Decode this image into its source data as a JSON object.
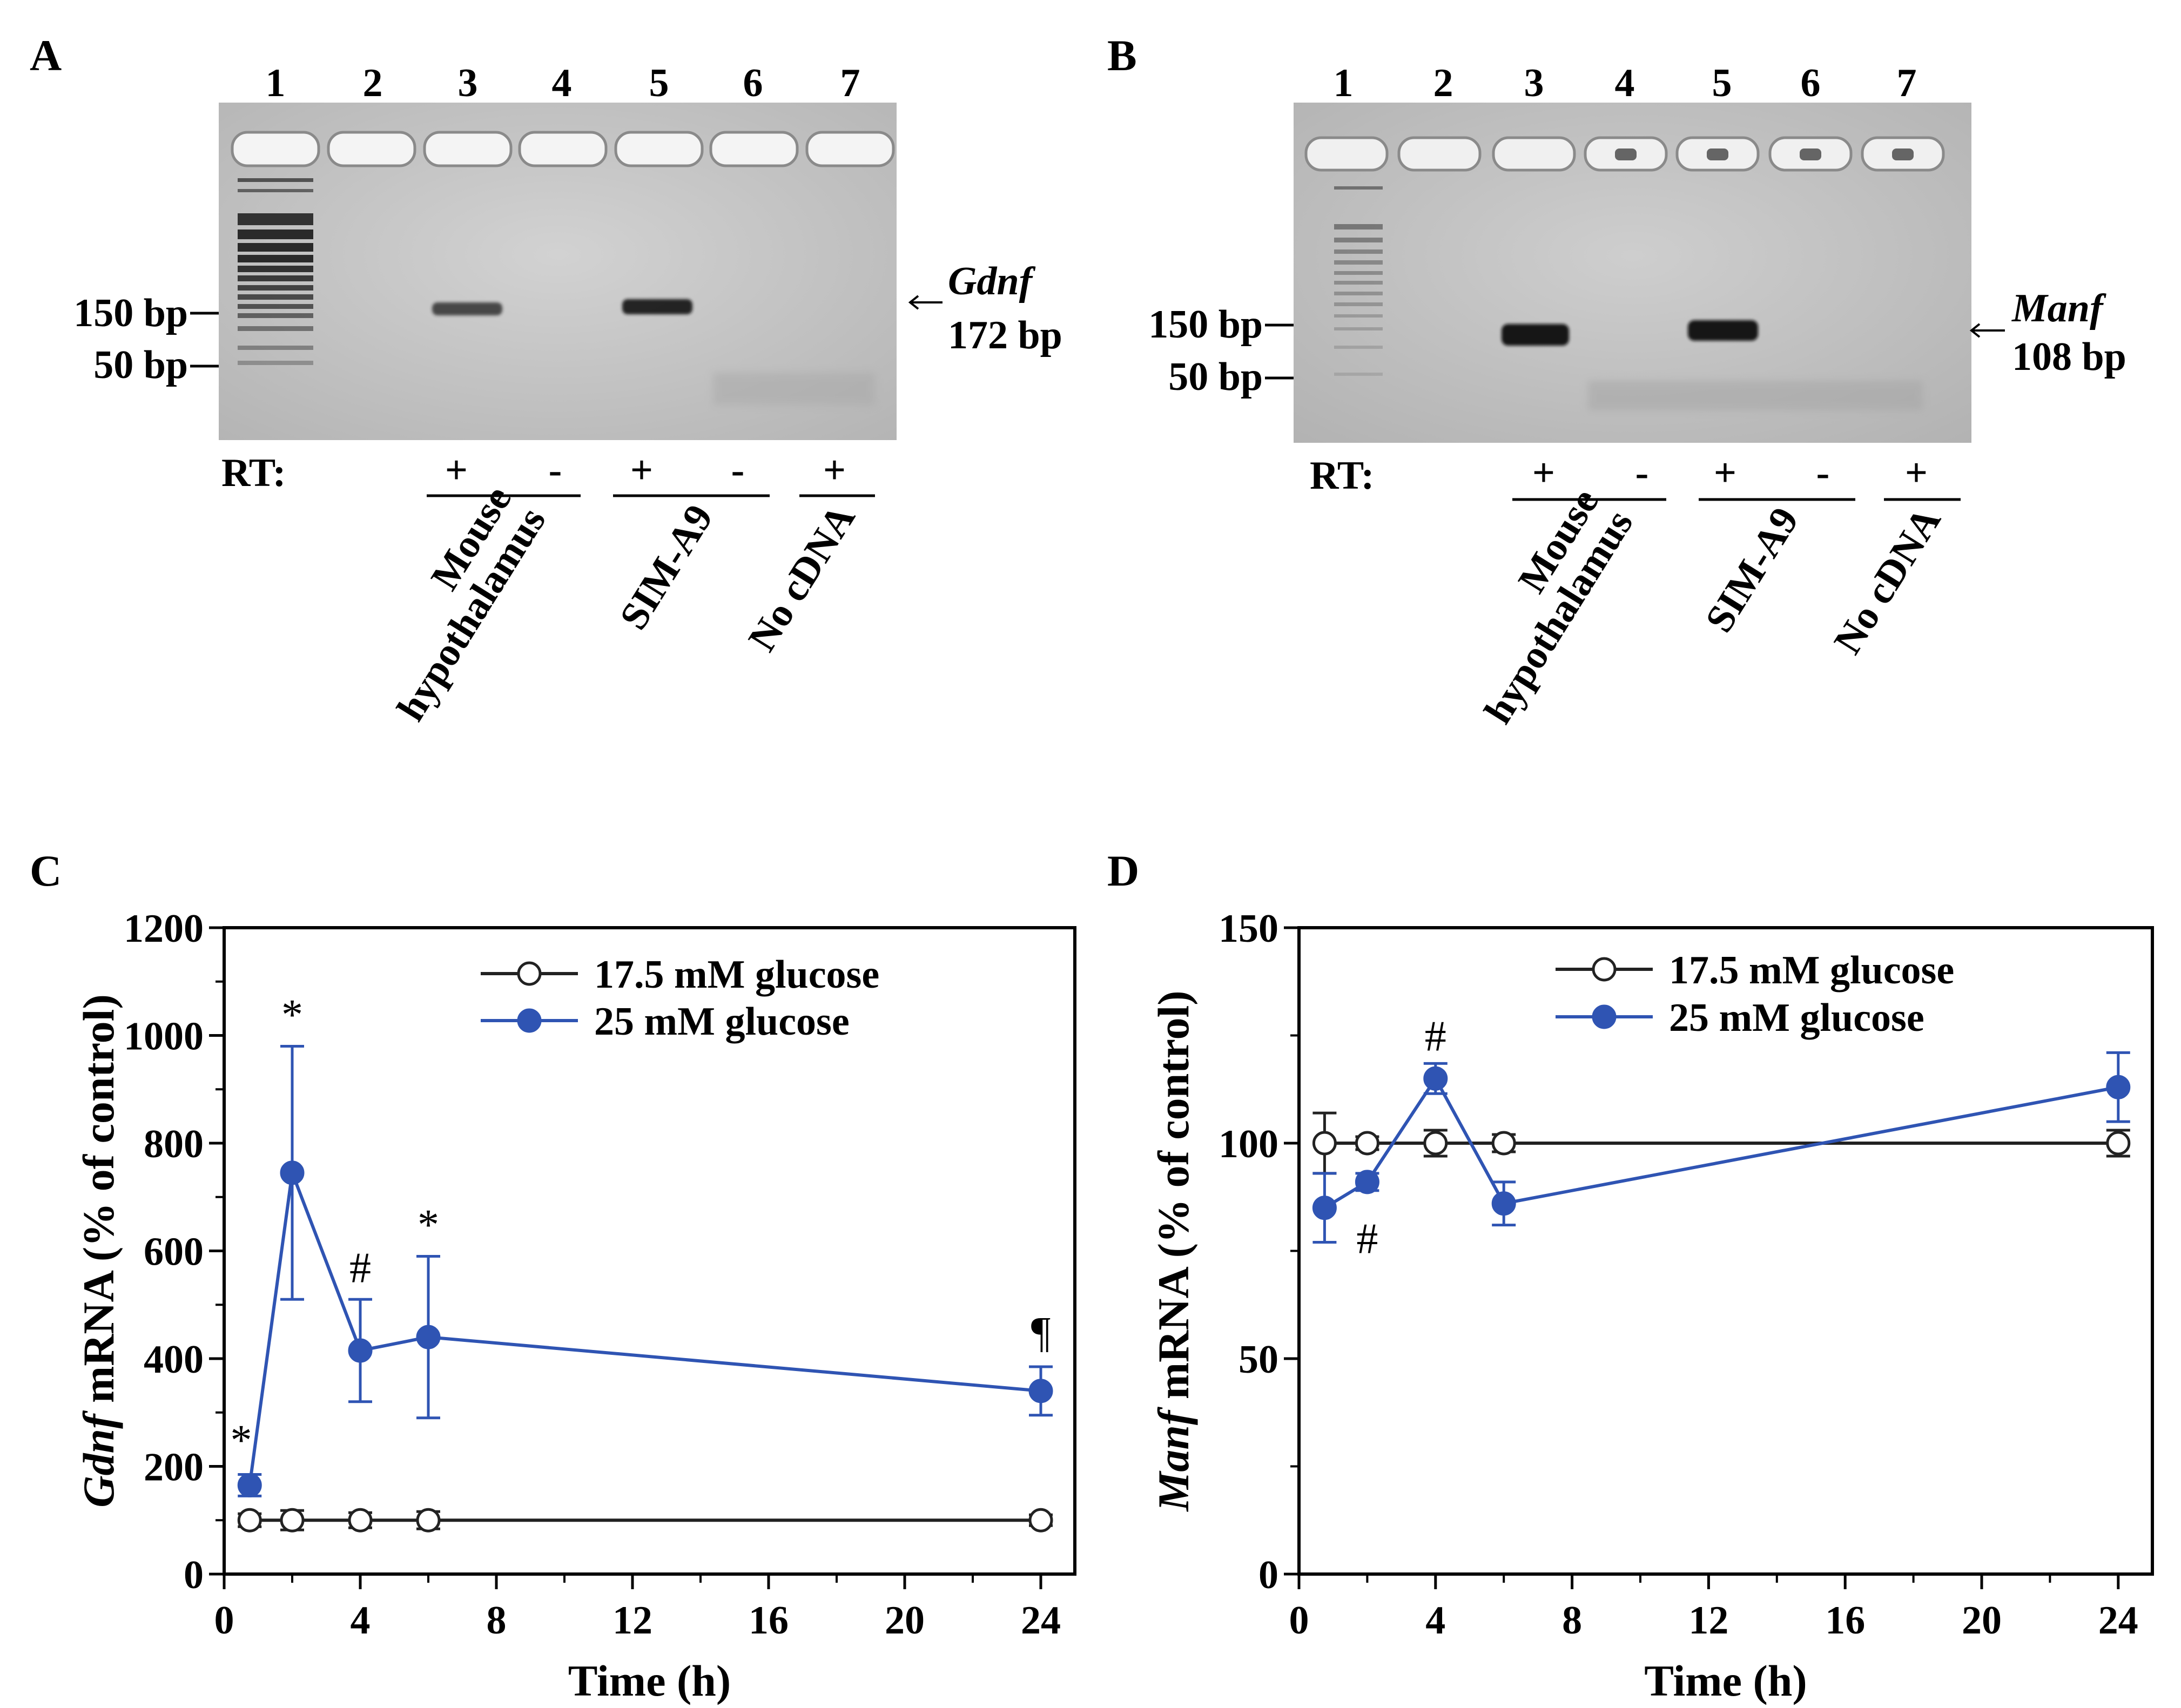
{
  "panels": {
    "A": {
      "label": "A",
      "lanes": [
        "1",
        "2",
        "3",
        "4",
        "5",
        "6",
        "7"
      ],
      "ladder": [
        "150 bp",
        "50 bp"
      ],
      "gene": "Gdnf",
      "size": "172 bp",
      "rt_label": "RT:",
      "rt": [
        "+",
        "-",
        "+",
        "-",
        "+"
      ],
      "groups": [
        {
          "line1": "Mouse",
          "line2": "hypothalamus"
        },
        {
          "line1": "SIM-A9"
        },
        {
          "line1": "No cDNA"
        }
      ]
    },
    "B": {
      "label": "B",
      "lanes": [
        "1",
        "2",
        "3",
        "4",
        "5",
        "6",
        "7"
      ],
      "ladder": [
        "150 bp",
        "50 bp"
      ],
      "gene": "Manf",
      "size": "108 bp",
      "rt_label": "RT:",
      "rt": [
        "+",
        "-",
        "+",
        "-",
        "+"
      ],
      "groups": [
        {
          "line1": "Mouse",
          "line2": "hypothalamus"
        },
        {
          "line1": "SIM-A9"
        },
        {
          "line1": "No cDNA"
        }
      ]
    }
  },
  "chart_data": [
    {
      "panel": "C",
      "type": "line",
      "ylabel_gene": "Gdnf",
      "ylabel_rest": " mRNA (% of control)",
      "xlabel": "Time (h)",
      "xlim": [
        0,
        25
      ],
      "ylim": [
        0,
        1200
      ],
      "xticks": [
        0,
        4,
        8,
        12,
        16,
        20,
        24
      ],
      "yticks": [
        0,
        200,
        400,
        600,
        800,
        1000,
        1200
      ],
      "series": [
        {
          "name": "17.5 mM glucose",
          "color": "#222222",
          "filled": false,
          "x": [
            0.75,
            2,
            4,
            6,
            24
          ],
          "y": [
            100,
            100,
            100,
            100,
            100
          ],
          "err": [
            12,
            18,
            14,
            16,
            10
          ]
        },
        {
          "name": "25 mM glucose",
          "color": "#2f54b3",
          "filled": true,
          "x": [
            0.75,
            2,
            4,
            6,
            24
          ],
          "y": [
            165,
            745,
            415,
            440,
            340
          ],
          "err": [
            20,
            235,
            95,
            150,
            45
          ]
        }
      ],
      "annotations": [
        {
          "text": "*",
          "x": 0.5,
          "y": 250
        },
        {
          "text": "*",
          "x": 2,
          "y": 1040
        },
        {
          "text": "#",
          "x": 4,
          "y": 570
        },
        {
          "text": "*",
          "x": 6,
          "y": 650
        },
        {
          "text": "¶",
          "x": 24,
          "y": 450
        }
      ]
    },
    {
      "panel": "D",
      "type": "line",
      "ylabel_gene": "Manf",
      "ylabel_rest": " mRNA (% of control)",
      "xlabel": "Time (h)",
      "xlim": [
        0,
        25
      ],
      "ylim": [
        0,
        150
      ],
      "xticks": [
        0,
        4,
        8,
        12,
        16,
        20,
        24
      ],
      "yticks": [
        0,
        50,
        100,
        150
      ],
      "series": [
        {
          "name": "17.5 mM glucose",
          "color": "#222222",
          "filled": false,
          "x": [
            0.75,
            2,
            4,
            6,
            24
          ],
          "y": [
            100,
            100,
            100,
            100,
            100
          ],
          "err": [
            7,
            1.5,
            3,
            2,
            3
          ]
        },
        {
          "name": "25 mM glucose",
          "color": "#2f54b3",
          "filled": true,
          "x": [
            0.75,
            2,
            4,
            6,
            24
          ],
          "y": [
            85,
            91,
            115,
            86,
            113
          ],
          "err": [
            8,
            2,
            3.5,
            5,
            8
          ]
        }
      ],
      "annotations": [
        {
          "text": "#",
          "x": 2,
          "y": 78
        },
        {
          "text": "#",
          "x": 4,
          "y": 125
        }
      ]
    }
  ]
}
